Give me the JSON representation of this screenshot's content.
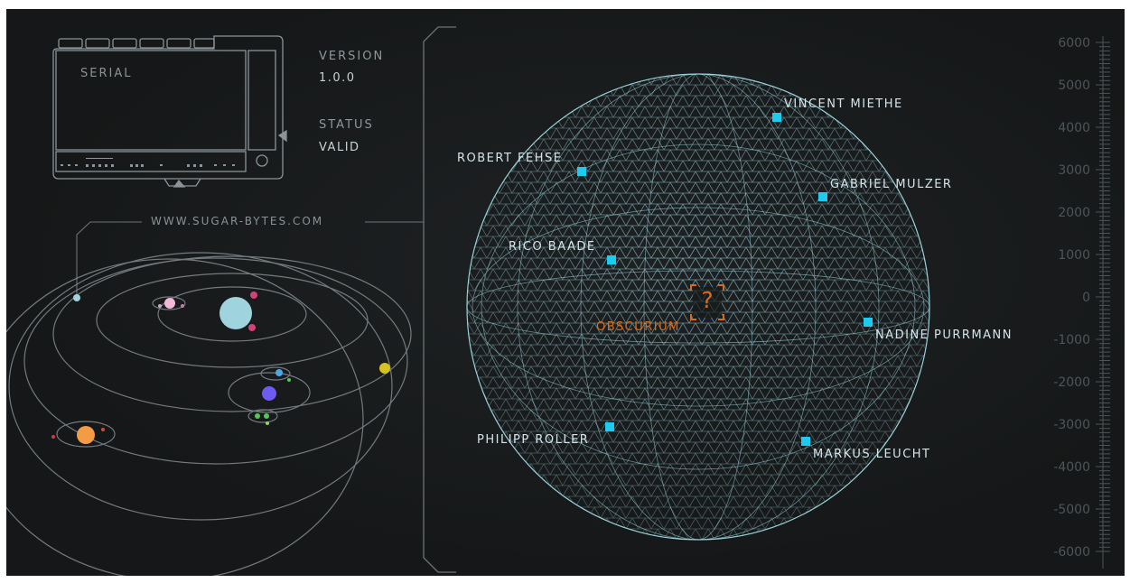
{
  "serial": {
    "label": "SERIAL"
  },
  "version": {
    "label": "VERSION",
    "value": "1.0.0"
  },
  "status": {
    "label": "STATUS",
    "value": "VALID"
  },
  "website": "WWW.SUGAR-BYTES.COM",
  "center": {
    "label": "OBSCURIUM",
    "icon": "question-icon",
    "glyph": "?",
    "color": "#e06a14"
  },
  "credits": [
    {
      "name": "VINCENT MIETHE"
    },
    {
      "name": "ROBERT FEHSE"
    },
    {
      "name": "GABRIEL MULZER"
    },
    {
      "name": "RICO BAADE"
    },
    {
      "name": "NADINE PURRMANN"
    },
    {
      "name": "PHILIPP ROLLER"
    },
    {
      "name": "MARKUS LEUCHT"
    }
  ],
  "scale": {
    "ticks": [
      "6000",
      "5000",
      "4000",
      "3000",
      "2000",
      "1000",
      "0",
      "-1000",
      "-2000",
      "-3000",
      "-4000",
      "-5000",
      "-6000"
    ]
  },
  "colors": {
    "background": "#17191a",
    "mesh": "#a6e4ee",
    "marker": "#1ecbf0",
    "accent": "#e06a14",
    "planets": [
      "#9fd4de",
      "#f39b45",
      "#6e5cf0",
      "#d7c320",
      "#f2b7d9",
      "#4aa8e8",
      "#57c657"
    ]
  }
}
